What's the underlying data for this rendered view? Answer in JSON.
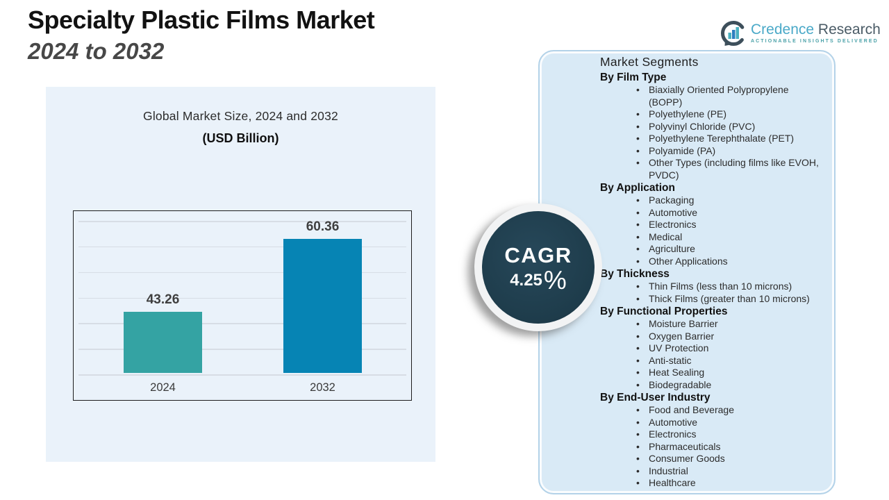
{
  "header": {
    "title_line1": "Specialty Plastic Films Market",
    "title_line2": "2024 to 2032"
  },
  "logo": {
    "brand_primary": "Credence",
    "brand_secondary": " Research",
    "tagline": "Actionable Insights Delivered"
  },
  "chart": {
    "title": "Global Market Size, 2024 and 2032",
    "subtitle": "(USD Billion)"
  },
  "chart_data": {
    "type": "bar",
    "title": "Global Market Size, 2024 and 2032 (USD Billion)",
    "categories": [
      "2024",
      "2032"
    ],
    "values": [
      43.26,
      60.36
    ],
    "xlabel": "",
    "ylabel": "USD Billion",
    "ylim": [
      29,
      65
    ],
    "grid": true,
    "legend": "none",
    "bar_colors": [
      "#34a3a3",
      "#0684b4"
    ]
  },
  "cagr": {
    "label": "CAGR",
    "value": "4.25",
    "percent_sign": "%"
  },
  "segments": {
    "title": "Market Segments",
    "sections": [
      {
        "heading": "By Film Type",
        "items": [
          "Biaxially Oriented Polypropylene (BOPP)",
          "Polyethylene (PE)",
          "Polyvinyl Chloride (PVC)",
          "Polyethylene Terephthalate (PET)",
          "Polyamide (PA)",
          "Other Types (including films like EVOH, PVDC)"
        ]
      },
      {
        "heading": "By Application",
        "items": [
          "Packaging",
          "Automotive",
          "Electronics",
          "Medical",
          "Agriculture",
          "Other Applications"
        ]
      },
      {
        "heading": "By Thickness",
        "items": [
          "Thin Films (less than 10 microns)",
          "Thick Films (greater than 10 microns)"
        ]
      },
      {
        "heading": "By Functional Properties",
        "items": [
          "Moisture Barrier",
          "Oxygen Barrier",
          "UV Protection",
          "Anti-static",
          "Heat Sealing",
          "Biodegradable"
        ]
      },
      {
        "heading": "By End-User Industry",
        "items": [
          "Food and Beverage",
          "Automotive",
          "Electronics",
          "Pharmaceuticals",
          "Consumer Goods",
          "Industrial",
          "Healthcare"
        ]
      }
    ]
  },
  "colors": {
    "panel_left_bg": "#eaf2fa",
    "panel_right_bg": "#d9eaf6",
    "panel_right_border": "#b3d2e8",
    "bar_2024": "#34a3a3",
    "bar_2032": "#0684b4",
    "cagr_circle": "#1e3c4b",
    "gridline": "#d7dde5",
    "brand_teal": "#4aa9c8",
    "brand_slate": "#4a5b66"
  }
}
